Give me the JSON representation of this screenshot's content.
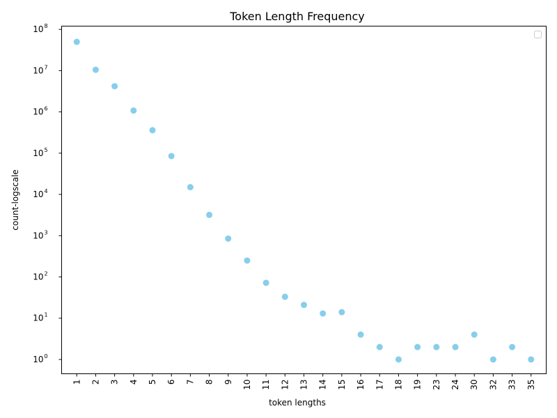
{
  "chart_data": {
    "type": "scatter",
    "title": "Token Length Frequency",
    "xlabel": "token lengths",
    "ylabel": "count-logscale",
    "yscale": "log",
    "ylim": [
      0.45,
      120000000
    ],
    "y_tick_base": "10",
    "y_tick_exponents": [
      "0",
      "1",
      "2",
      "3",
      "4",
      "5",
      "6",
      "7",
      "8"
    ],
    "grid": false,
    "legend": "top-right (empty)",
    "marker_color": "#87CEEB",
    "x_is_categorical": true,
    "categories": [
      "1",
      "2",
      "3",
      "4",
      "5",
      "6",
      "7",
      "8",
      "9",
      "10",
      "11",
      "12",
      "13",
      "14",
      "15",
      "16",
      "17",
      "18",
      "19",
      "23",
      "24",
      "30",
      "32",
      "33",
      "35"
    ],
    "values": [
      50000000,
      10500000,
      4200000,
      1080000,
      360000,
      85000,
      15000,
      3200,
      850,
      250,
      72,
      33,
      21,
      13,
      14,
      4,
      2,
      1,
      2,
      2,
      2,
      4,
      1,
      2,
      1
    ]
  }
}
